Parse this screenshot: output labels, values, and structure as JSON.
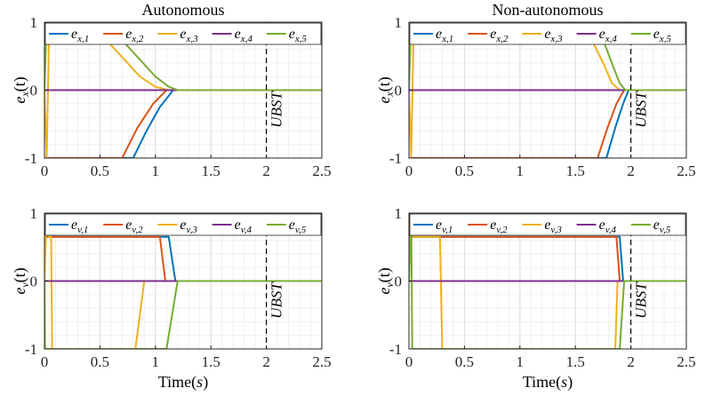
{
  "chart_data": [
    {
      "type": "line",
      "title": "Autonomous",
      "ylabel": "e_x(t)",
      "ylabel_main": "e",
      "ylabel_sub": "x",
      "ylabel_tail": "(t)",
      "xlabel": "",
      "xlim": [
        0,
        2.5
      ],
      "ylim": [
        -1,
        1
      ],
      "xticks": [
        "0",
        "0.5",
        "1",
        "1.5",
        "2",
        "2.5"
      ],
      "yticks": [
        "-1",
        "0",
        "1"
      ],
      "annotation": {
        "label": "UBST",
        "x": 2
      },
      "legend_location": "top",
      "series": [
        {
          "name": "e_x,1",
          "sub": "x,1",
          "color": "#0072BD",
          "x": [
            0,
            0.8,
            0.92,
            1.04,
            1.16,
            2.5
          ],
          "y": [
            -1,
            -1,
            -0.6,
            -0.25,
            0,
            0
          ]
        },
        {
          "name": "e_x,2",
          "sub": "x,2",
          "color": "#D95319",
          "x": [
            0,
            0.7,
            0.84,
            0.98,
            1.1,
            2.5
          ],
          "y": [
            -1,
            -1,
            -0.55,
            -0.2,
            0,
            0
          ]
        },
        {
          "name": "e_x,3",
          "sub": "x,3",
          "color": "#EDB120",
          "x": [
            0,
            0.02,
            0.04,
            0.58,
            0.72,
            0.86,
            1.0,
            1.12,
            2.5
          ],
          "y": [
            0,
            -1,
            0.7,
            0.7,
            0.45,
            0.2,
            0.05,
            0,
            0
          ]
        },
        {
          "name": "e_x,4",
          "sub": "x,4",
          "color": "#7E2F8E",
          "x": [
            0,
            0.1,
            1.2,
            2.5
          ],
          "y": [
            0,
            0,
            0,
            0
          ]
        },
        {
          "name": "e_x,5",
          "sub": "x,5",
          "color": "#77AC30",
          "x": [
            0,
            0.02,
            0.04,
            0.72,
            0.86,
            1.0,
            1.12,
            1.2,
            2.5
          ],
          "y": [
            0,
            1,
            0.7,
            0.7,
            0.45,
            0.2,
            0.05,
            0,
            0
          ]
        }
      ]
    },
    {
      "type": "line",
      "title": "Non-autonomous",
      "ylabel": "e_x(t)",
      "ylabel_main": "e",
      "ylabel_sub": "x",
      "ylabel_tail": "(t)",
      "xlabel": "",
      "xlim": [
        0,
        2.5
      ],
      "ylim": [
        -1,
        1
      ],
      "xticks": [
        "0",
        "0.5",
        "1",
        "1.5",
        "2",
        "2.5"
      ],
      "yticks": [
        "-1",
        "0",
        "1"
      ],
      "annotation": {
        "label": "UBST",
        "x": 2
      },
      "legend_location": "top",
      "series": [
        {
          "name": "e_x,1",
          "sub": "x,1",
          "color": "#0072BD",
          "x": [
            0,
            1.78,
            1.86,
            1.93,
            1.98,
            2.5
          ],
          "y": [
            -1,
            -1,
            -0.55,
            -0.2,
            0,
            0
          ]
        },
        {
          "name": "e_x,2",
          "sub": "x,2",
          "color": "#D95319",
          "x": [
            0,
            1.7,
            1.79,
            1.87,
            1.94,
            2.5
          ],
          "y": [
            -1,
            -1,
            -0.55,
            -0.2,
            0,
            0
          ]
        },
        {
          "name": "e_x,3",
          "sub": "x,3",
          "color": "#EDB120",
          "x": [
            0,
            0.02,
            0.04,
            1.66,
            1.75,
            1.83,
            1.9,
            2.5
          ],
          "y": [
            0,
            -1,
            0.7,
            0.7,
            0.4,
            0.1,
            0,
            0
          ]
        },
        {
          "name": "e_x,4",
          "sub": "x,4",
          "color": "#7E2F8E",
          "x": [
            0,
            2.5
          ],
          "y": [
            0,
            0
          ]
        },
        {
          "name": "e_x,5",
          "sub": "x,5",
          "color": "#77AC30",
          "x": [
            0,
            0.02,
            0.04,
            1.76,
            1.84,
            1.9,
            1.95,
            2.5
          ],
          "y": [
            0,
            1,
            0.7,
            0.7,
            0.35,
            0.1,
            0,
            0
          ]
        }
      ]
    },
    {
      "type": "line",
      "title": "",
      "ylabel": "e_v(t)",
      "ylabel_main": "e",
      "ylabel_sub": "v",
      "ylabel_tail": "(t)",
      "xlabel": "Time(s)",
      "xlabel_main": "Time(",
      "xlabel_var": "s",
      "xlabel_tail": ")",
      "xlim": [
        0,
        2.5
      ],
      "ylim": [
        -1,
        1
      ],
      "xticks": [
        "0",
        "0.5",
        "1",
        "1.5",
        "2",
        "2.5"
      ],
      "yticks": [
        "-1",
        "0",
        "1"
      ],
      "annotation": {
        "label": "UBST",
        "x": 2
      },
      "legend_location": "top",
      "series": [
        {
          "name": "e_v,1",
          "sub": "v,1",
          "color": "#0072BD",
          "x": [
            0,
            0.005,
            0.01,
            1.12,
            1.18,
            2.5
          ],
          "y": [
            0,
            1,
            0.65,
            0.65,
            0,
            0
          ]
        },
        {
          "name": "e_v,2",
          "sub": "v,2",
          "color": "#D95319",
          "x": [
            0,
            0.005,
            0.01,
            1.04,
            1.09,
            2.5
          ],
          "y": [
            0,
            1,
            0.65,
            0.65,
            0,
            0
          ]
        },
        {
          "name": "e_v,3",
          "sub": "v,3",
          "color": "#EDB120",
          "x": [
            0,
            0.02,
            0.04,
            0.06,
            0.07,
            0.08,
            0.82,
            0.9,
            2.5
          ],
          "y": [
            0,
            1,
            0.65,
            0.65,
            -1,
            -1,
            -1,
            0,
            0
          ]
        },
        {
          "name": "e_v,4",
          "sub": "v,4",
          "color": "#7E2F8E",
          "x": [
            0,
            2.5
          ],
          "y": [
            0,
            0
          ]
        },
        {
          "name": "e_v,5",
          "sub": "v,5",
          "color": "#77AC30",
          "x": [
            0,
            0.005,
            0.01,
            1.1,
            1.2,
            2.5
          ],
          "y": [
            0,
            -1,
            -1,
            -1,
            0,
            0
          ]
        }
      ]
    },
    {
      "type": "line",
      "title": "",
      "ylabel": "e_v(t)",
      "ylabel_main": "e",
      "ylabel_sub": "v",
      "ylabel_tail": "(t)",
      "xlabel": "Time(s)",
      "xlabel_main": "Time(",
      "xlabel_var": "s",
      "xlabel_tail": ")",
      "xlim": [
        0,
        2.5
      ],
      "ylim": [
        -1,
        1
      ],
      "xticks": [
        "0",
        "0.5",
        "1",
        "1.5",
        "2",
        "2.5"
      ],
      "yticks": [
        "-1",
        "0",
        "1"
      ],
      "annotation": {
        "label": "UBST",
        "x": 2
      },
      "legend_location": "top",
      "series": [
        {
          "name": "e_v,1",
          "sub": "v,1",
          "color": "#0072BD",
          "x": [
            0,
            0.005,
            0.01,
            1.9,
            1.93,
            2.5
          ],
          "y": [
            0,
            1,
            0.65,
            0.65,
            0,
            0
          ]
        },
        {
          "name": "e_v,2",
          "sub": "v,2",
          "color": "#D95319",
          "x": [
            0,
            0.005,
            0.01,
            1.87,
            1.9,
            2.5
          ],
          "y": [
            0,
            1,
            0.65,
            0.65,
            0,
            0
          ]
        },
        {
          "name": "e_v,3",
          "sub": "v,3",
          "color": "#EDB120",
          "x": [
            0,
            0.02,
            0.04,
            0.28,
            0.3,
            0.31,
            1.86,
            1.88,
            2.5
          ],
          "y": [
            0,
            1,
            0.65,
            0.65,
            -1,
            -1,
            -1,
            0,
            0
          ]
        },
        {
          "name": "e_v,4",
          "sub": "v,4",
          "color": "#7E2F8E",
          "x": [
            0,
            2.5
          ],
          "y": [
            0,
            0
          ]
        },
        {
          "name": "e_v,5",
          "sub": "v,5",
          "color": "#77AC30",
          "x": [
            0,
            0.02,
            0.03,
            0.04,
            1.9,
            1.94,
            2.5
          ],
          "y": [
            0,
            1,
            -1,
            -1,
            -1,
            0,
            0
          ]
        }
      ]
    }
  ]
}
